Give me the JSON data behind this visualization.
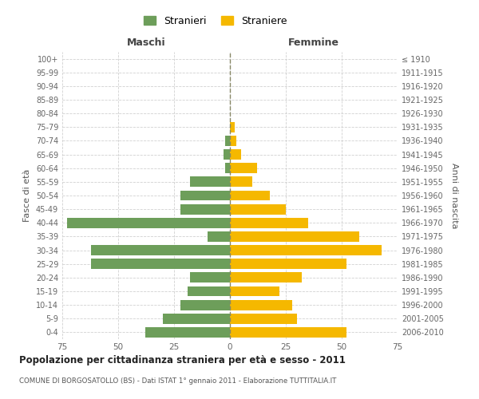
{
  "age_groups": [
    "0-4",
    "5-9",
    "10-14",
    "15-19",
    "20-24",
    "25-29",
    "30-34",
    "35-39",
    "40-44",
    "45-49",
    "50-54",
    "55-59",
    "60-64",
    "65-69",
    "70-74",
    "75-79",
    "80-84",
    "85-89",
    "90-94",
    "95-99",
    "100+"
  ],
  "birth_years": [
    "2006-2010",
    "2001-2005",
    "1996-2000",
    "1991-1995",
    "1986-1990",
    "1981-1985",
    "1976-1980",
    "1971-1975",
    "1966-1970",
    "1961-1965",
    "1956-1960",
    "1951-1955",
    "1946-1950",
    "1941-1945",
    "1936-1940",
    "1931-1935",
    "1926-1930",
    "1921-1925",
    "1916-1920",
    "1911-1915",
    "≤ 1910"
  ],
  "maschi": [
    38,
    30,
    22,
    19,
    18,
    62,
    62,
    10,
    73,
    22,
    22,
    18,
    2,
    3,
    2,
    0,
    0,
    0,
    0,
    0,
    0
  ],
  "femmine": [
    52,
    30,
    28,
    22,
    32,
    52,
    68,
    58,
    35,
    25,
    18,
    10,
    12,
    5,
    3,
    2,
    0,
    0,
    0,
    0,
    0
  ],
  "male_color": "#6d9e5a",
  "female_color": "#f5b800",
  "male_label": "Stranieri",
  "female_label": "Straniere",
  "title": "Popolazione per cittadinanza straniera per età e sesso - 2011",
  "subtitle": "COMUNE DI BORGOSATOLLO (BS) - Dati ISTAT 1° gennaio 2011 - Elaborazione TUTTITALIA.IT",
  "xlabel_left": "Maschi",
  "xlabel_right": "Femmine",
  "ylabel_left": "Fasce di età",
  "ylabel_right": "Anni di nascita",
  "xlim": 75,
  "background_color": "#ffffff",
  "grid_color": "#cccccc"
}
